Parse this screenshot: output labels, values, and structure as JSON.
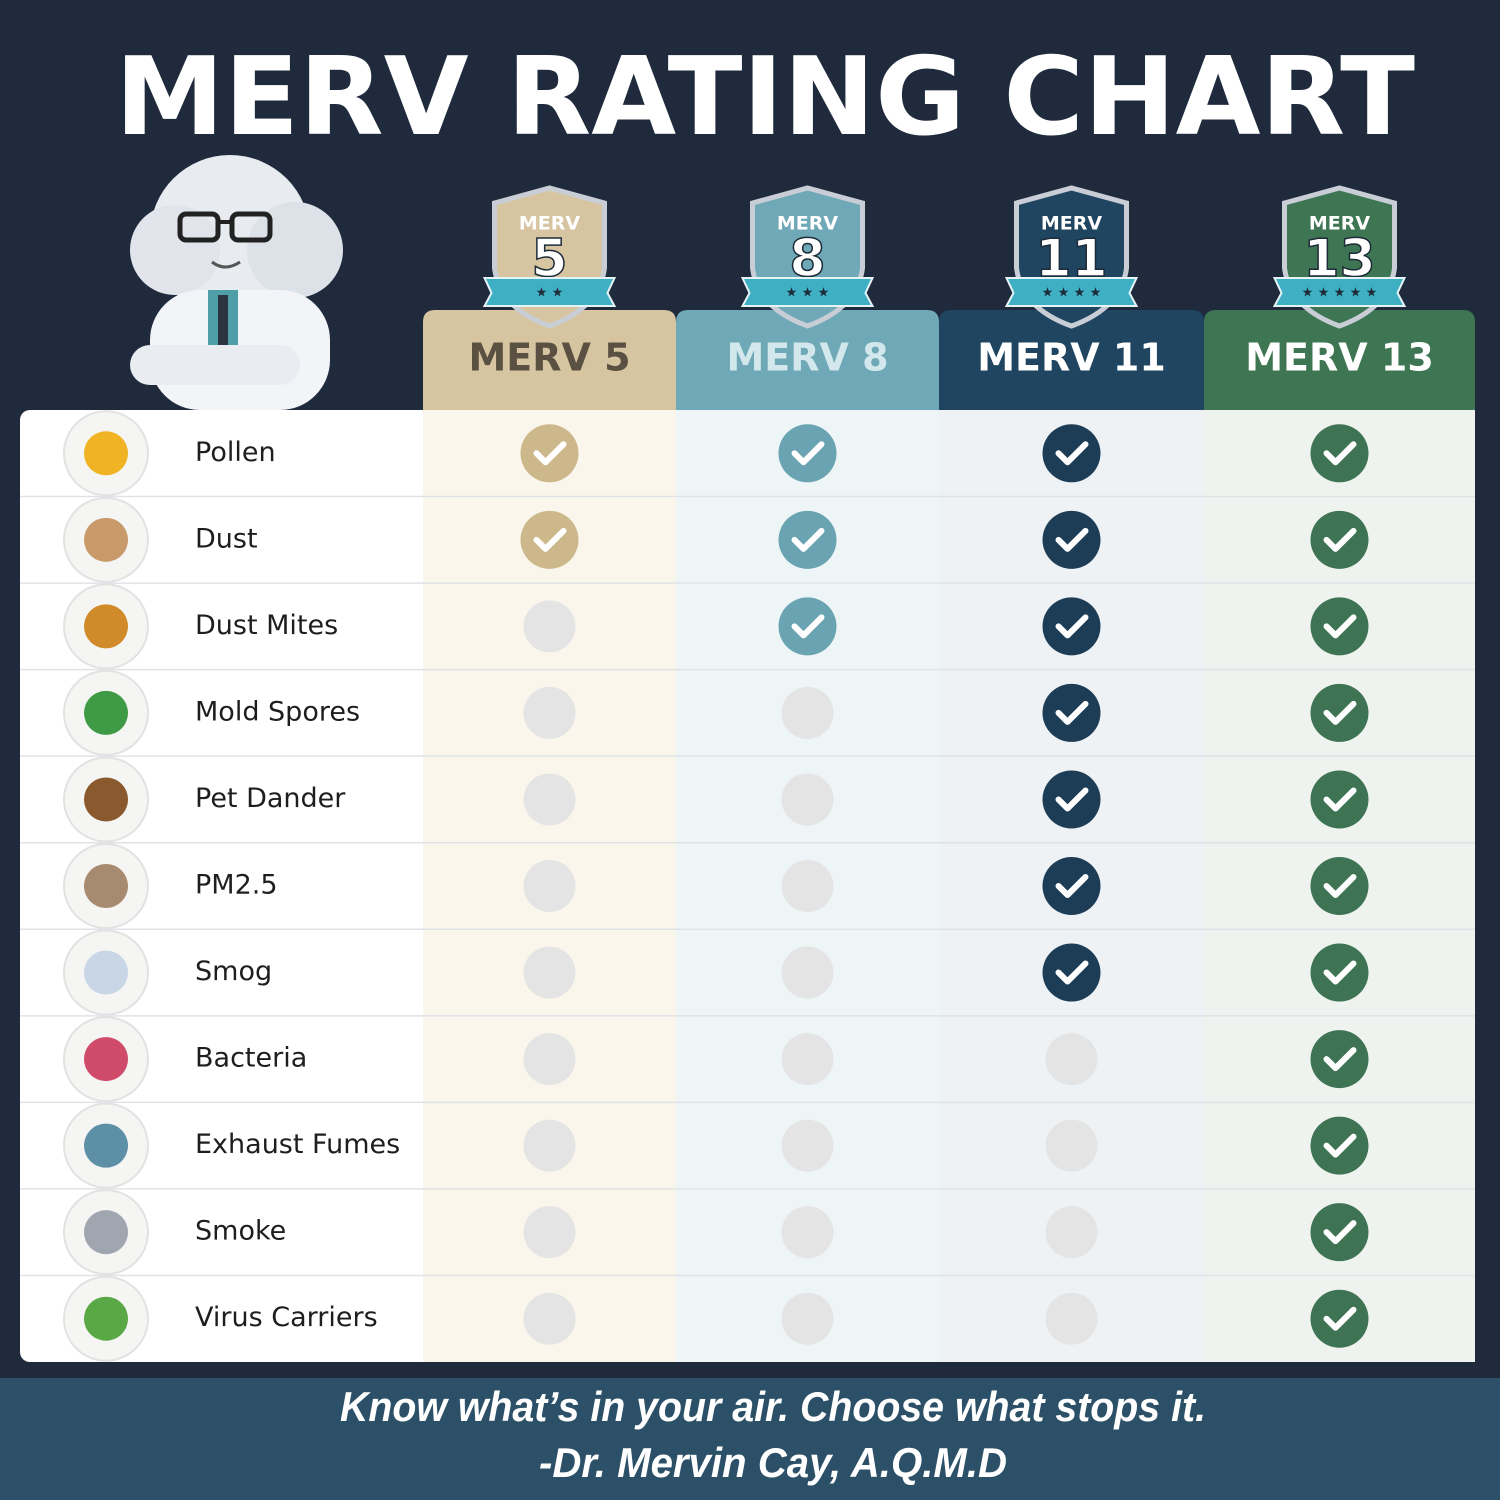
{
  "title": "MERV RATING CHART",
  "columns": [
    {
      "badge_label": "MERV",
      "badge_number": "5",
      "stars": 2,
      "header": "MERV 5",
      "header_color": "#d6c5a0",
      "text_color": "#5b5142",
      "tint": "#faf6ec",
      "check_color": "#cdb88c"
    },
    {
      "badge_label": "MERV",
      "badge_number": "8",
      "stars": 3,
      "header": "MERV 8",
      "header_color": "#6fa8b6",
      "text_color": "#d3e8ec",
      "tint": "#eef5f7",
      "check_color": "#6aa3b1"
    },
    {
      "badge_label": "MERV",
      "badge_number": "11",
      "stars": 4,
      "header": "MERV 11",
      "header_color": "#1f4560",
      "text_color": "#ffffff",
      "tint": "#eef2f5",
      "check_color": "#1d3d57"
    },
    {
      "badge_label": "MERV",
      "badge_number": "13",
      "stars": 5,
      "header": "MERV 13",
      "header_color": "#3e7653",
      "text_color": "#ffffff",
      "tint": "#eff3ef",
      "check_color": "#3e7353"
    }
  ],
  "rows": [
    "Pollen",
    "Dust",
    "Dust Mites",
    "Mold Spores",
    "Pet Dander",
    "PM2.5",
    "Smog",
    "Bacteria",
    "Exhaust Fumes",
    "Smoke",
    "Virus Carriers"
  ],
  "filters": [
    [
      true,
      true,
      true,
      true
    ],
    [
      true,
      true,
      true,
      true
    ],
    [
      false,
      true,
      true,
      true
    ],
    [
      false,
      false,
      true,
      true
    ],
    [
      false,
      false,
      true,
      true
    ],
    [
      false,
      false,
      true,
      true
    ],
    [
      false,
      false,
      true,
      true
    ],
    [
      false,
      false,
      false,
      true
    ],
    [
      false,
      false,
      false,
      true
    ],
    [
      false,
      false,
      false,
      true
    ],
    [
      false,
      false,
      false,
      true
    ]
  ],
  "footer": {
    "quote": "Know what’s in your air. Choose what stops it.",
    "attribution": "-Dr. Mervin Cay, A.Q.M.D"
  }
}
